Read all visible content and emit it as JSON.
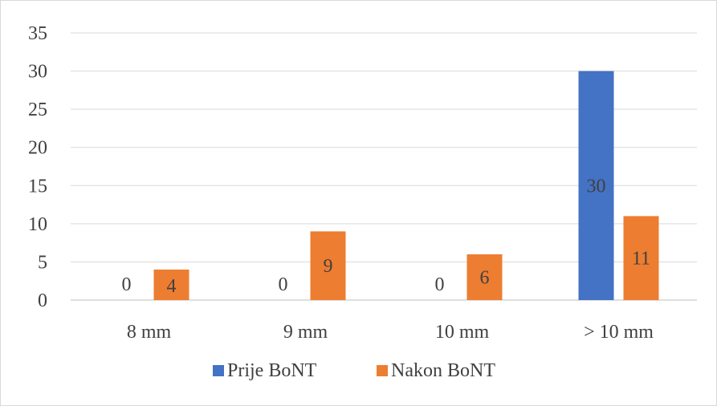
{
  "chart_data": {
    "type": "bar",
    "title": "",
    "xlabel": "",
    "ylabel": "",
    "categories": [
      "8 mm",
      "9 mm",
      "10 mm",
      "> 10 mm"
    ],
    "series": [
      {
        "name": "Prije BoNT",
        "color": "#4472c4",
        "values": [
          0,
          0,
          0,
          30
        ]
      },
      {
        "name": "Nakon BoNT",
        "color": "#ed7d31",
        "values": [
          4,
          9,
          6,
          11
        ]
      }
    ],
    "ylim": [
      0,
      35
    ],
    "yticks": [
      0,
      5,
      10,
      15,
      20,
      25,
      30,
      35
    ],
    "grid": true,
    "legend_position": "bottom",
    "data_labels": true
  }
}
